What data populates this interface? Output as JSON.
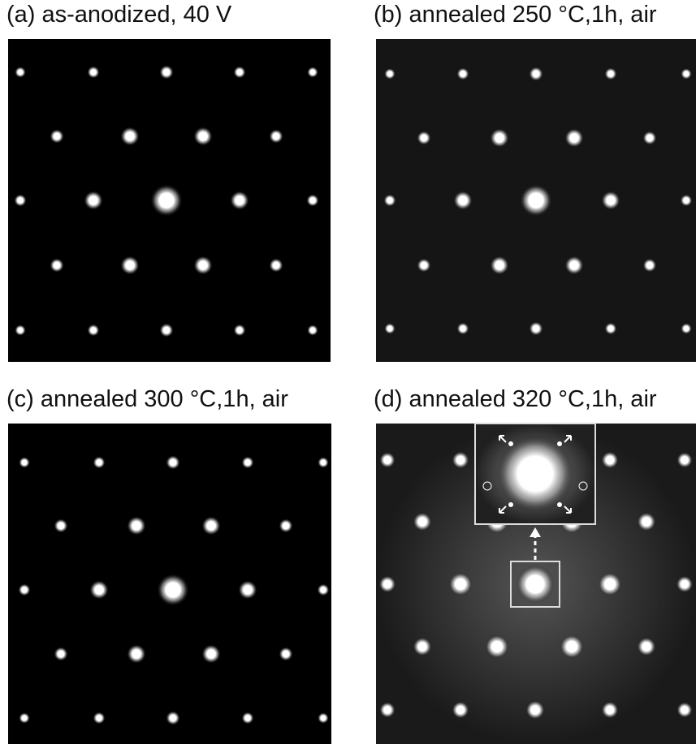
{
  "panels": [
    {
      "label": "(a) as-anodized, 40 V"
    },
    {
      "label": "(b) annealed 250 °C,1h, air"
    },
    {
      "label": "(c) annealed 300 °C,1h, air"
    },
    {
      "label": "(d) annealed 320 °C,1h, air"
    }
  ]
}
